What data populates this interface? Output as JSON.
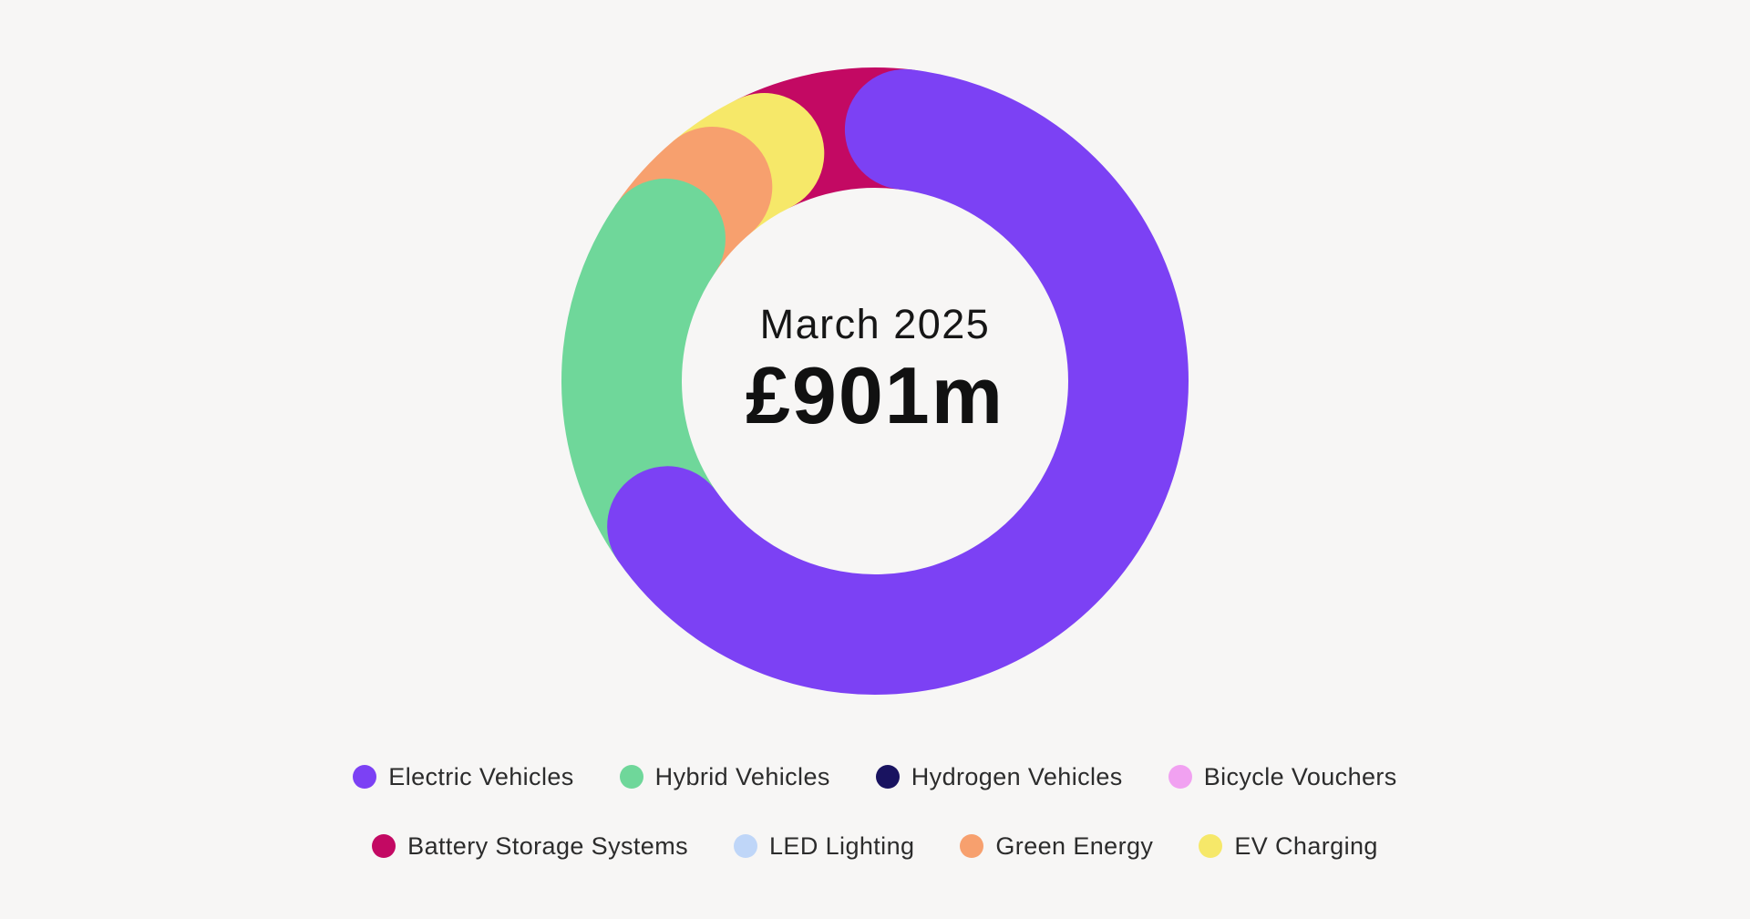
{
  "page": {
    "background": "#F7F6F5"
  },
  "chart_data": {
    "type": "pie",
    "subtype": "donut",
    "center_label": {
      "period": "March 2025",
      "total": "£901m"
    },
    "legend_position": "bottom",
    "series": [
      {
        "label": "Electric Vehicles",
        "color": "#7C41F4",
        "percent": 63.4
      },
      {
        "label": "Hybrid Vehicles",
        "color": "#6FD79A",
        "percent": 19.2
      },
      {
        "label": "Hydrogen Vehicles",
        "color": "#191360",
        "percent": 0
      },
      {
        "label": "Bicycle Vouchers",
        "color": "#F1A1F1",
        "percent": 0
      },
      {
        "label": "Battery Storage Systems",
        "color": "#C30963",
        "percent": 9.1
      },
      {
        "label": "LED Lighting",
        "color": "#BFD6F8",
        "percent": 0
      },
      {
        "label": "Green Energy",
        "color": "#F7A06E",
        "percent": 4.4
      },
      {
        "label": "EV Charging",
        "color": "#F6E869",
        "percent": 3.9
      }
    ],
    "donut_order": [
      0,
      1,
      6,
      7,
      4
    ],
    "start_angle_deg": 6.8,
    "legend_rows": [
      [
        0,
        1,
        2,
        3
      ],
      [
        4,
        5,
        6,
        7
      ]
    ]
  }
}
